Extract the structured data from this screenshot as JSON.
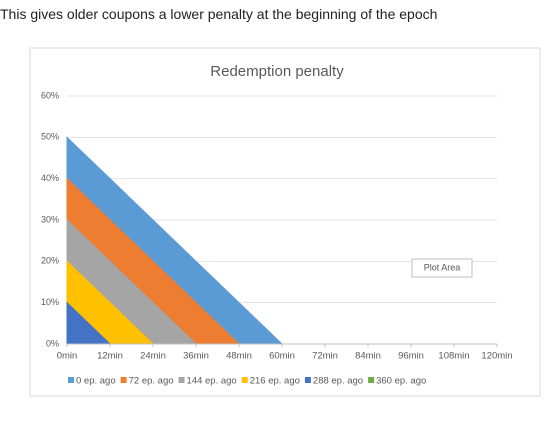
{
  "intro_text": "This gives older coupons a lower penalty at the beginning of the epoch",
  "chart_data": {
    "type": "area",
    "title": "Redemption penalty",
    "x": [
      0,
      12,
      24,
      36,
      48,
      60,
      72,
      84,
      96,
      108,
      120
    ],
    "series": [
      {
        "name": "0 ep. ago",
        "color": "#5b9bd5",
        "values": [
          50,
          40,
          30,
          20,
          10,
          0,
          0,
          0,
          0,
          0,
          0
        ]
      },
      {
        "name": "72 ep. ago",
        "color": "#ed7d31",
        "values": [
          40,
          30,
          20,
          10,
          0,
          0,
          0,
          0,
          0,
          0,
          0
        ]
      },
      {
        "name": "144 ep. ago",
        "color": "#a5a5a5",
        "values": [
          30,
          20,
          10,
          0,
          0,
          0,
          0,
          0,
          0,
          0,
          0
        ]
      },
      {
        "name": "216 ep. ago",
        "color": "#ffc000",
        "values": [
          20,
          10,
          0,
          0,
          0,
          0,
          0,
          0,
          0,
          0,
          0
        ]
      },
      {
        "name": "288 ep. ago",
        "color": "#4472c4",
        "values": [
          10,
          0,
          0,
          0,
          0,
          0,
          0,
          0,
          0,
          0,
          0
        ]
      },
      {
        "name": "360 ep. ago",
        "color": "#70ad47",
        "values": [
          0,
          0,
          0,
          0,
          0,
          0,
          0,
          0,
          0,
          0,
          0
        ]
      }
    ],
    "xlim": [
      0,
      120
    ],
    "xticks": [
      {
        "value": 0,
        "label": "0min"
      },
      {
        "value": 12,
        "label": "12min"
      },
      {
        "value": 24,
        "label": "24min"
      },
      {
        "value": 36,
        "label": "36min"
      },
      {
        "value": 48,
        "label": "48min"
      },
      {
        "value": 60,
        "label": "60min"
      },
      {
        "value": 72,
        "label": "72min"
      },
      {
        "value": 84,
        "label": "84min"
      },
      {
        "value": 96,
        "label": "96min"
      },
      {
        "value": 108,
        "label": "108min"
      },
      {
        "value": 120,
        "label": "120min"
      }
    ],
    "ylim": [
      0,
      60
    ],
    "yticks": [
      {
        "value": 0,
        "label": "0%"
      },
      {
        "value": 10,
        "label": "10%"
      },
      {
        "value": 20,
        "label": "20%"
      },
      {
        "value": 30,
        "label": "30%"
      },
      {
        "value": 40,
        "label": "40%"
      },
      {
        "value": 50,
        "label": "50%"
      },
      {
        "value": 60,
        "label": "60%"
      }
    ],
    "grid": true,
    "legend": "bottom",
    "tooltip": "Plot Area"
  }
}
